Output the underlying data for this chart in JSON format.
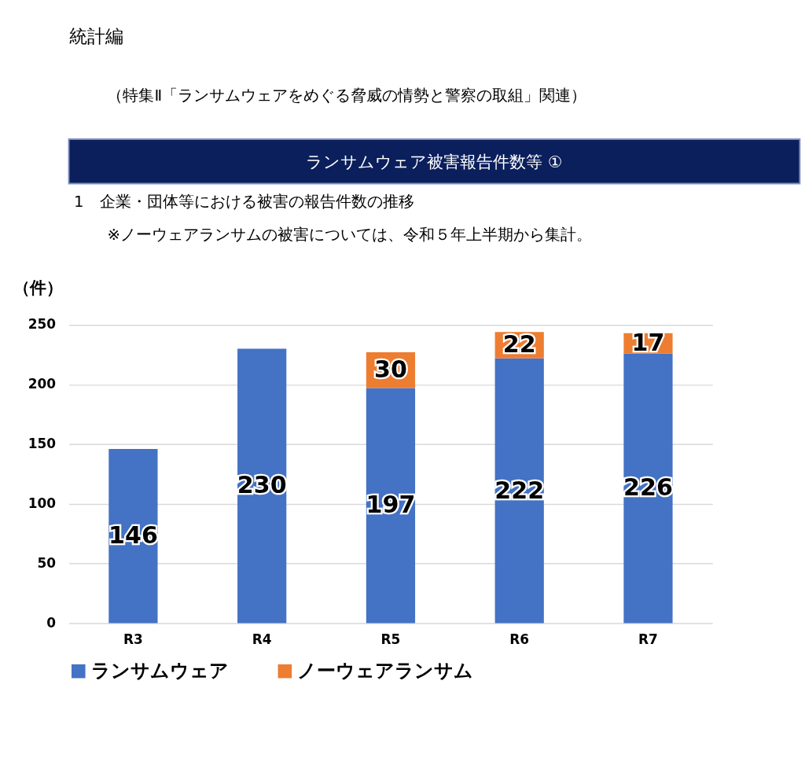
{
  "chart_data": {
    "type": "bar",
    "title": "統計編",
    "subtitle": "（特集Ⅱ「ランサムウェアをめぐる脅威の情勢と警察の取組」関連）",
    "annotations": [
      "ランサムウェア被害報告件数等 ①",
      "1　企業・団体等における被害の報告件数の推移",
      "※ノーウェアランサムの被害については、令和５年上半期から集計。"
    ],
    "ylabel": "（件）",
    "categories": [
      "R3",
      "R4",
      "R5",
      "R6",
      "R7"
    ],
    "series": [
      {
        "name": "ランサムウェア",
        "color": "#4472c4",
        "values": [
          146,
          230,
          197,
          222,
          226
        ]
      },
      {
        "name": "ノーウェアランサム",
        "color": "#ed7d31",
        "values": [
          null,
          null,
          30,
          22,
          17
        ]
      }
    ],
    "stacked": true,
    "data_labels": true,
    "ylim": [
      0,
      250
    ],
    "yticks": [
      0,
      50,
      100,
      150,
      200,
      250
    ],
    "grid": "y",
    "legend": "bottom"
  }
}
